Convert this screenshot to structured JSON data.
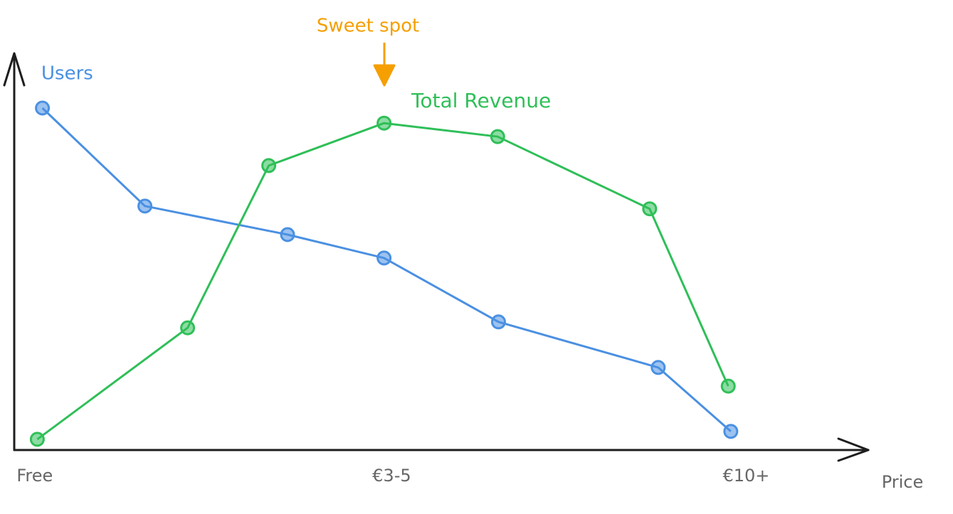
{
  "chart_data": {
    "type": "line",
    "annotation": "Sweet spot",
    "xlabel": "Price",
    "xlim": [
      0,
      100
    ],
    "ylim": [
      0,
      100
    ],
    "xticks": [
      {
        "value": 2.4,
        "label": "Free"
      },
      {
        "value": 44.2,
        "label": "€3-5"
      },
      {
        "value": 85.7,
        "label": "€10+"
      }
    ],
    "series": [
      {
        "name": "Users",
        "color": "#4a90e2",
        "x": [
          3.3,
          15.3,
          32,
          43.3,
          56.7,
          75.4,
          83.9
        ],
        "values": [
          86.2,
          61.5,
          54.3,
          48.4,
          32.3,
          20.8,
          4.7
        ]
      },
      {
        "name": "Total Revenue",
        "color": "#2fbf58",
        "x": [
          2.7,
          20.3,
          29.8,
          43.3,
          56.6,
          74.4,
          83.6
        ],
        "values": [
          2.7,
          30.8,
          71.7,
          82.4,
          79.0,
          60.8,
          16.1
        ]
      }
    ]
  }
}
